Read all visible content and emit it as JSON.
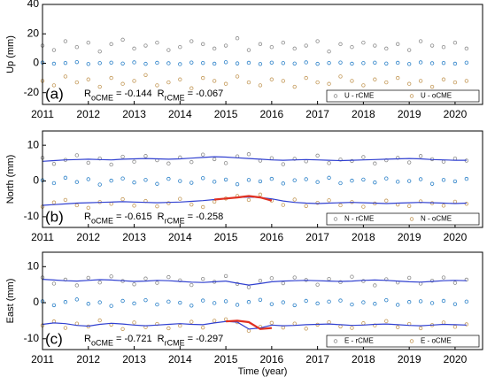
{
  "chart_data": [
    {
      "type": "scatter",
      "ylabel": "Up (mm)",
      "annotation": "(a)",
      "stats": [
        {
          "symbol": "R",
          "sub": "oCME",
          "text": "= -0.144"
        },
        {
          "symbol": "R",
          "sub": "rCME",
          "text": "= -0.067"
        }
      ],
      "legend": "lower right",
      "xlim": [
        2011,
        2020.6
      ],
      "xticks": [
        2011,
        2012,
        2013,
        2014,
        2015,
        2016,
        2017,
        2018,
        2019,
        2020
      ],
      "ylim": [
        -28,
        40
      ],
      "yticks": [
        -20,
        0,
        20,
        40
      ],
      "x": [
        2011,
        2011.25,
        2011.5,
        2011.75,
        2012,
        2012.25,
        2012.5,
        2012.75,
        2013,
        2013.25,
        2013.5,
        2013.75,
        2014,
        2014.25,
        2014.5,
        2014.75,
        2015,
        2015.25,
        2015.5,
        2015.75,
        2016,
        2016.25,
        2016.5,
        2016.75,
        2017,
        2017.25,
        2017.5,
        2017.75,
        2018,
        2018.25,
        2018.5,
        2018.75,
        2019,
        2019.25,
        2019.5,
        2019.75,
        2020,
        2020.25
      ],
      "series": [
        {
          "name": "U - rCME",
          "color": "#8c8c8c",
          "style": "marker",
          "values": [
            12,
            9,
            15,
            11,
            14,
            8,
            13,
            16,
            10,
            12,
            14,
            9,
            11,
            15,
            13,
            10,
            12,
            17,
            9,
            13,
            11,
            14,
            10,
            12,
            15,
            8,
            13,
            11,
            14,
            12,
            10,
            13,
            9,
            15,
            12,
            11,
            14,
            10
          ]
        },
        {
          "name": "U - oCME",
          "color": "#c49a5a",
          "style": "marker",
          "values": [
            -12,
            -15,
            -9,
            -13,
            -11,
            -16,
            -10,
            -14,
            -12,
            -8,
            -15,
            -13,
            -11,
            -17,
            -10,
            -12,
            -14,
            -9,
            -13,
            -15,
            -11,
            -12,
            -16,
            -10,
            -13,
            -14,
            -9,
            -12,
            -15,
            -11,
            -13,
            -10,
            -14,
            -12,
            -16,
            -11,
            -13,
            -12
          ]
        },
        {
          "color": "#2a80c8",
          "style": "marker",
          "values": [
            0.5,
            -0.3,
            0.2,
            0.8,
            -0.5,
            0.1,
            0.4,
            -0.2,
            0.6,
            -0.4,
            0.3,
            0,
            -0.6,
            0.5,
            0.2,
            -0.3,
            0.7,
            -0.1,
            0.3,
            -0.5,
            0.4,
            0.1,
            -0.2,
            0.6,
            -0.4,
            0.2,
            0.5,
            -0.3,
            0.1,
            0.4,
            -0.2,
            0.3,
            -0.5,
            0.6,
            0,
            0.2,
            -0.3,
            0.4
          ]
        }
      ]
    },
    {
      "type": "scatter",
      "ylabel": "North (mm)",
      "annotation": "(b)",
      "stats": [
        {
          "symbol": "R",
          "sub": "oCME",
          "text": "= -0.615"
        },
        {
          "symbol": "R",
          "sub": "rCME",
          "text": "= -0.258"
        }
      ],
      "legend": "lower right",
      "xlim": [
        2011,
        2020.6
      ],
      "xticks": [
        2011,
        2012,
        2013,
        2014,
        2015,
        2016,
        2017,
        2018,
        2019,
        2020
      ],
      "ylim": [
        -13,
        14
      ],
      "yticks": [
        -10,
        0,
        10
      ],
      "x": [
        2011,
        2011.25,
        2011.5,
        2011.75,
        2012,
        2012.25,
        2012.5,
        2012.75,
        2013,
        2013.25,
        2013.5,
        2013.75,
        2014,
        2014.25,
        2014.5,
        2014.75,
        2015,
        2015.25,
        2015.5,
        2015.75,
        2016,
        2016.25,
        2016.5,
        2016.75,
        2017,
        2017.25,
        2017.5,
        2017.75,
        2018,
        2018.25,
        2018.5,
        2018.75,
        2019,
        2019.25,
        2019.5,
        2019.75,
        2020,
        2020.25
      ],
      "series": [
        {
          "name": "N - rCME",
          "color": "#8c8c8c",
          "style": "marker",
          "values": [
            6.5,
            4.8,
            5.9,
            7.2,
            5.1,
            6.3,
            4.6,
            6.8,
            5.4,
            7.0,
            5.8,
            4.9,
            6.6,
            5.3,
            7.4,
            6.1,
            5.0,
            6.9,
            7.5,
            5.7,
            6.4,
            4.7,
            6.2,
            5.5,
            7.1,
            5.0,
            6.0,
            5.6,
            6.7,
            4.9,
            5.8,
            6.5,
            5.2,
            7.0,
            6.1,
            5.4,
            6.3,
            5.7
          ]
        },
        {
          "name": "N - oCME",
          "color": "#c49a5a",
          "style": "marker",
          "values": [
            -7.2,
            -6.0,
            -5.3,
            -6.8,
            -7.5,
            -5.9,
            -6.4,
            -5.1,
            -6.9,
            -5.6,
            -7.1,
            -6.2,
            -5.0,
            -6.6,
            -7.3,
            -5.8,
            -4.9,
            -4.2,
            -5.3,
            -3.8,
            -5.5,
            -6.7,
            -5.2,
            -7.0,
            -6.1,
            -5.4,
            -6.8,
            -5.9,
            -7.2,
            -6.3,
            -5.5,
            -6.6,
            -7.0,
            -5.7,
            -6.2,
            -6.9,
            -5.8,
            -6.4
          ]
        },
        {
          "color": "#2a80c8",
          "style": "marker",
          "values": [
            0.2,
            -0.6,
            0.9,
            -0.3,
            0.5,
            -1.0,
            0.1,
            0.7,
            -0.4,
            0.3,
            -0.8,
            0.6,
            0,
            -0.5,
            0.8,
            -0.2,
            0.4,
            -0.9,
            0.3,
            -0.1,
            0.6,
            -0.7,
            0.2,
            0.5,
            -0.3,
            0.9,
            -0.6,
            0.1,
            0.4,
            -0.4,
            0.7,
            -0.2,
            0,
            0.5,
            -0.8,
            0.3,
            -0.1,
            0.6
          ]
        },
        {
          "color": "#3040d0",
          "style": "line",
          "values": [
            5.5,
            5.7,
            5.9,
            6.0,
            6.1,
            6.0,
            5.9,
            6.1,
            6.2,
            6.3,
            6.2,
            6.1,
            6.2,
            6.4,
            6.6,
            6.8,
            6.7,
            6.5,
            6.3,
            6.1,
            5.9,
            5.8,
            5.9,
            6.0,
            5.9,
            5.8,
            5.7,
            5.8,
            5.9,
            6.0,
            6.1,
            6.2,
            6.3,
            6.2,
            6.0,
            5.9,
            5.8,
            5.8
          ]
        },
        {
          "color": "#3040d0",
          "style": "line",
          "values": [
            -6.8,
            -6.6,
            -6.4,
            -6.2,
            -6.1,
            -6.0,
            -5.9,
            -5.8,
            -5.9,
            -6.0,
            -6.1,
            -6.0,
            -5.9,
            -5.7,
            -5.5,
            -5.2,
            -4.9,
            -4.6,
            -4.5,
            -4.6,
            -5.0,
            -5.6,
            -6.0,
            -6.2,
            -6.3,
            -6.2,
            -6.1,
            -6.0,
            -6.1,
            -6.2,
            -6.3,
            -6.2,
            -6.1,
            -6.0,
            -6.1,
            -6.2,
            -6.3,
            -6.2
          ]
        },
        {
          "color": "#e03020",
          "style": "line",
          "values": [
            null,
            null,
            null,
            null,
            null,
            null,
            null,
            null,
            null,
            null,
            null,
            null,
            null,
            null,
            null,
            -5.2,
            -4.9,
            -4.6,
            -4.2,
            -4.6,
            -5.5,
            null,
            null,
            null,
            null,
            null,
            null,
            null,
            null,
            null,
            null,
            null,
            null,
            null,
            null,
            null,
            null,
            null
          ]
        }
      ]
    },
    {
      "type": "scatter",
      "ylabel": "East (mm)",
      "xlabel": "Time (year)",
      "annotation": "(c)",
      "stats": [
        {
          "symbol": "R",
          "sub": "oCME",
          "text": "= -0.721"
        },
        {
          "symbol": "R",
          "sub": "rCME",
          "text": "= -0.297"
        }
      ],
      "legend": "lower right",
      "xlim": [
        2011,
        2020.6
      ],
      "xticks": [
        2011,
        2012,
        2013,
        2014,
        2015,
        2016,
        2017,
        2018,
        2019,
        2020
      ],
      "ylim": [
        -13,
        14
      ],
      "yticks": [
        -10,
        0,
        10
      ],
      "x": [
        2011,
        2011.25,
        2011.5,
        2011.75,
        2012,
        2012.25,
        2012.5,
        2012.75,
        2013,
        2013.25,
        2013.5,
        2013.75,
        2014,
        2014.25,
        2014.5,
        2014.75,
        2015,
        2015.25,
        2015.5,
        2015.75,
        2016,
        2016.25,
        2016.5,
        2016.75,
        2017,
        2017.25,
        2017.5,
        2017.75,
        2018,
        2018.25,
        2018.5,
        2018.75,
        2019,
        2019.25,
        2019.5,
        2019.75,
        2020,
        2020.25
      ],
      "series": [
        {
          "name": "E - rCME",
          "color": "#8c8c8c",
          "style": "marker",
          "values": [
            7.0,
            5.3,
            6.4,
            4.8,
            6.9,
            5.6,
            7.3,
            6.0,
            5.1,
            6.7,
            5.5,
            7.1,
            6.2,
            4.9,
            6.6,
            5.8,
            7.4,
            5.2,
            4.3,
            6.1,
            6.8,
            5.4,
            7.0,
            6.3,
            5.0,
            6.6,
            5.7,
            7.2,
            6.0,
            4.8,
            6.5,
            5.6,
            6.9,
            5.3,
            6.1,
            7.0,
            5.5,
            6.4
          ]
        },
        {
          "name": "E - oCME",
          "color": "#c49a5a",
          "style": "marker",
          "values": [
            -6.3,
            -5.2,
            -7.0,
            -5.8,
            -6.6,
            -4.9,
            -6.1,
            -7.3,
            -5.5,
            -6.8,
            -5.9,
            -7.1,
            -6.4,
            -5.3,
            -6.9,
            -5.0,
            -4.6,
            -5.4,
            -7.8,
            -6.7,
            -5.6,
            -6.9,
            -5.8,
            -7.2,
            -6.1,
            -5.4,
            -6.6,
            -7.0,
            -5.7,
            -6.3,
            -5.1,
            -6.8,
            -5.9,
            -7.1,
            -6.2,
            -5.5,
            -6.7,
            -6.0
          ]
        },
        {
          "color": "#2a80c8",
          "style": "marker",
          "values": [
            0.4,
            -0.7,
            0.2,
            0.9,
            -0.3,
            0.1,
            -0.9,
            0.5,
            -0.2,
            0.7,
            -0.5,
            0.3,
            0,
            -0.8,
            0.6,
            -0.1,
            0.4,
            -0.6,
            0.2,
            0.8,
            -0.4,
            0.1,
            -0.7,
            0.5,
            -0.2,
            0.3,
            0.6,
            -0.5,
            0.1,
            -0.3,
            0.7,
            -0.6,
            0.2,
            0.4,
            -0.1,
            0.5,
            -0.4,
            0.3
          ]
        },
        {
          "color": "#3040d0",
          "style": "line",
          "values": [
            6.5,
            6.3,
            6.1,
            6.0,
            6.2,
            6.4,
            6.3,
            6.1,
            5.9,
            6.0,
            6.2,
            6.1,
            5.9,
            5.7,
            5.6,
            5.8,
            6.0,
            5.4,
            4.9,
            5.3,
            5.8,
            6.0,
            6.1,
            6.2,
            6.1,
            6.0,
            5.9,
            6.0,
            6.2,
            6.3,
            6.2,
            6.0,
            5.8,
            5.7,
            5.9,
            6.1,
            6.2,
            6.1
          ]
        },
        {
          "color": "#3040d0",
          "style": "line",
          "values": [
            -6.0,
            -5.6,
            -5.8,
            -6.3,
            -6.5,
            -6.0,
            -5.7,
            -5.9,
            -6.2,
            -6.4,
            -6.2,
            -6.0,
            -5.8,
            -6.0,
            -6.1,
            -5.6,
            -5.2,
            -5.4,
            -7.3,
            -7.0,
            -6.2,
            -6.4,
            -6.3,
            -6.1,
            -6.0,
            -5.9,
            -6.1,
            -6.3,
            -6.2,
            -6.0,
            -5.9,
            -6.1,
            -6.3,
            -6.4,
            -6.2,
            -6.0,
            -6.1,
            -6.2
          ]
        },
        {
          "color": "#e03020",
          "style": "line",
          "values": [
            null,
            null,
            null,
            null,
            null,
            null,
            null,
            null,
            null,
            null,
            null,
            null,
            null,
            null,
            null,
            null,
            -5.2,
            -5.0,
            -5.4,
            -7.3,
            -7.0,
            null,
            null,
            null,
            null,
            null,
            null,
            null,
            null,
            null,
            null,
            null,
            null,
            null,
            null,
            null,
            null,
            null
          ]
        }
      ]
    }
  ]
}
